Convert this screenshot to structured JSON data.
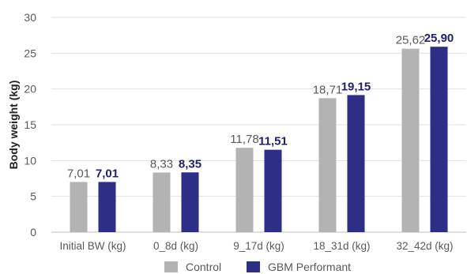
{
  "chart_data": {
    "type": "bar",
    "title": "",
    "xlabel": "",
    "ylabel": "Body weight (kg)",
    "ylim": [
      0,
      30
    ],
    "yticks": [
      0,
      5,
      10,
      15,
      20,
      25,
      30
    ],
    "grid": true,
    "legend_position": "bottom",
    "categories": [
      "Initial BW (kg)",
      "0_8d (kg)",
      "9_17d (kg)",
      "18_31d (kg)",
      "32_42d (kg)"
    ],
    "series": [
      {
        "name": "Control",
        "color": "#b3b3b3",
        "label_color": "#595959",
        "values": [
          7.01,
          8.33,
          11.78,
          18.71,
          25.62
        ],
        "labels": [
          "7,01",
          "8,33",
          "11,78",
          "18,71",
          "25,62"
        ]
      },
      {
        "name": "GBM Performant",
        "color": "#2e2e86",
        "label_color": "#1f1f6b",
        "values": [
          7.01,
          8.35,
          11.51,
          19.15,
          25.9
        ],
        "labels": [
          "7,01",
          "8,35",
          "11,51",
          "19,15",
          "25,90"
        ]
      }
    ]
  }
}
